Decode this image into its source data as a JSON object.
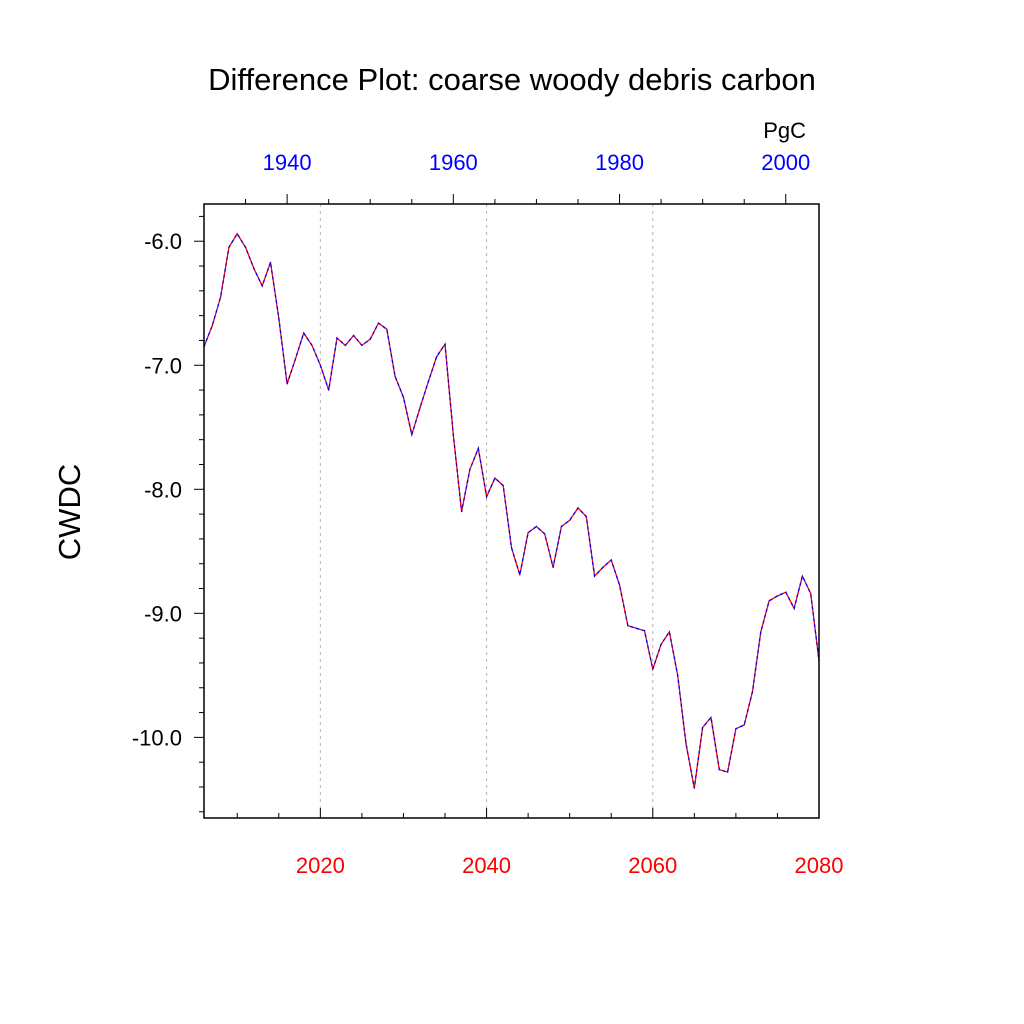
{
  "chart_data": {
    "type": "line",
    "title": "Difference Plot: coarse woody debris carbon",
    "ylabel": "CWDC",
    "units": "PgC",
    "ylim": [
      -10.65,
      -5.7
    ],
    "yticks": [
      -6.0,
      -7.0,
      -8.0,
      -9.0,
      -10.0
    ],
    "ytick_labels": [
      "-6.0",
      "-7.0",
      "-8.0",
      "-9.0",
      "-10.0"
    ],
    "x_bottom": {
      "range": [
        2006,
        2080
      ],
      "ticks": [
        2020,
        2040,
        2060,
        2080
      ],
      "tick_labels": [
        "2020",
        "2040",
        "2060",
        "2080"
      ],
      "color": "#ff0000"
    },
    "x_top": {
      "range": [
        1930,
        2004
      ],
      "ticks": [
        1940,
        1960,
        1980,
        2000
      ],
      "tick_labels": [
        "1940",
        "1960",
        "1980",
        "2000"
      ],
      "color": "#0000ff"
    },
    "grid": "vertical dashed at bottom major ticks",
    "series": [
      {
        "line_colors": [
          "#ff0000",
          "#0000ff"
        ],
        "x": [
          2006,
          2007,
          2008,
          2009,
          2010,
          2011,
          2012,
          2013,
          2014,
          2015,
          2016,
          2017,
          2018,
          2019,
          2020,
          2021,
          2022,
          2023,
          2024,
          2025,
          2026,
          2027,
          2028,
          2029,
          2030,
          2031,
          2032,
          2033,
          2034,
          2035,
          2036,
          2037,
          2038,
          2039,
          2040,
          2041,
          2042,
          2043,
          2044,
          2045,
          2046,
          2047,
          2048,
          2049,
          2050,
          2051,
          2052,
          2053,
          2054,
          2055,
          2056,
          2057,
          2058,
          2059,
          2060,
          2061,
          2062,
          2063,
          2064,
          2065,
          2066,
          2067,
          2068,
          2069,
          2070,
          2071,
          2072,
          2073,
          2074,
          2075,
          2076,
          2077,
          2078,
          2079,
          2080
        ],
        "y": [
          -6.85,
          -6.68,
          -6.45,
          -6.05,
          -5.94,
          -6.05,
          -6.22,
          -6.36,
          -6.17,
          -6.62,
          -7.15,
          -6.95,
          -6.74,
          -6.84,
          -7.0,
          -7.2,
          -6.78,
          -6.84,
          -6.76,
          -6.84,
          -6.79,
          -6.66,
          -6.71,
          -7.09,
          -7.26,
          -7.56,
          -7.34,
          -7.13,
          -6.93,
          -6.83,
          -7.56,
          -8.18,
          -7.84,
          -7.67,
          -8.06,
          -7.91,
          -7.97,
          -8.47,
          -8.69,
          -8.35,
          -8.3,
          -8.36,
          -8.63,
          -8.3,
          -8.25,
          -8.15,
          -8.22,
          -8.7,
          -8.63,
          -8.57,
          -8.77,
          -9.1,
          -9.12,
          -9.14,
          -9.45,
          -9.25,
          -9.15,
          -9.5,
          -10.05,
          -10.41,
          -9.92,
          -9.84,
          -10.26,
          -10.28,
          -9.93,
          -9.9,
          -9.63,
          -9.15,
          -8.9,
          -8.86,
          -8.83,
          -8.96,
          -8.7,
          -8.84,
          -9.38
        ]
      }
    ]
  }
}
